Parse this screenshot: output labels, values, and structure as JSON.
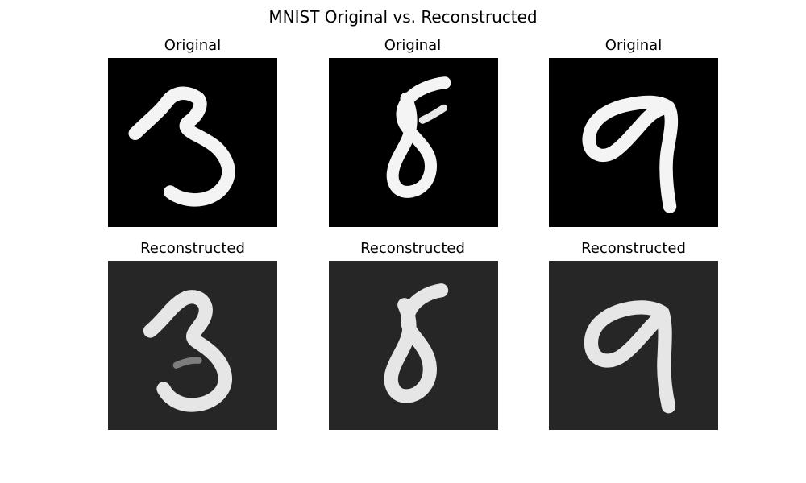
{
  "figure": {
    "title": "MNIST Original vs. Reconstructed",
    "rows": [
      {
        "row_title": "Original",
        "panels": [
          {
            "title": "Original",
            "digit": "3"
          },
          {
            "title": "Original",
            "digit": "8"
          },
          {
            "title": "Original",
            "digit": "9"
          }
        ]
      },
      {
        "row_title": "Reconstructed",
        "panels": [
          {
            "title": "Reconstructed",
            "digit": "3"
          },
          {
            "title": "Reconstructed",
            "digit": "8"
          },
          {
            "title": "Reconstructed",
            "digit": "9"
          }
        ]
      }
    ]
  },
  "colors": {
    "original_background": "#000000",
    "reconstructed_background": "#262626",
    "stroke_original": "#f4f4f4",
    "stroke_reconstructed": "#e6e6e6"
  }
}
